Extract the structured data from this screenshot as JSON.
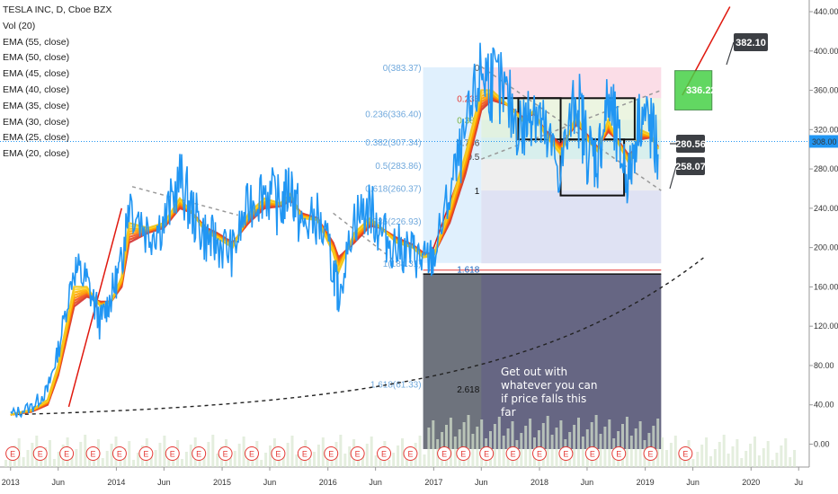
{
  "legend": {
    "title": "TESLA INC, D, Cboe BZX",
    "items": [
      "Vol (20)",
      "EMA (55, close)",
      "EMA (50, close)",
      "EMA (45, close)",
      "EMA (40, close)",
      "EMA (35, close)",
      "EMA (30, close)",
      "EMA (25, close)",
      "EMA (20, close)"
    ]
  },
  "colors": {
    "price": "#2196f3",
    "ema_fast": "#f0c419",
    "ema_slow": "#e53935",
    "trend_red": "#e0190f",
    "fib_dashed": "#000000",
    "callout_bg": "#3c3f44",
    "green_box": "#47d147",
    "earnings": "#e53935"
  },
  "chart_data": {
    "type": "line",
    "title": "TESLA INC, D, Cboe BZX",
    "xlabel": "",
    "ylabel": "",
    "ylim": [
      -5,
      440
    ],
    "y_ticks": [
      "0.00",
      "40.00",
      "80.00",
      "120.00",
      "160.00",
      "200.00",
      "240.00",
      "280.00",
      "320.00",
      "360.00",
      "400.00",
      "440.00"
    ],
    "x_ticks": [
      "2013",
      "Jun",
      "2014",
      "Jun",
      "2015",
      "Jun",
      "2016",
      "Jun",
      "2017",
      "Jun",
      "2018",
      "Jun",
      "2019",
      "Jun",
      "2020",
      "Ju"
    ],
    "current_price_label": "308.00",
    "series": [
      {
        "name": "TESLA INC",
        "x": [
          2013.0,
          2013.2,
          2013.35,
          2013.45,
          2013.6,
          2013.72,
          2013.85,
          2013.95,
          2014.05,
          2014.12,
          2014.3,
          2014.45,
          2014.6,
          2014.72,
          2014.85,
          2014.95,
          2015.1,
          2015.25,
          2015.4,
          2015.55,
          2015.65,
          2015.75,
          2015.9,
          2016.05,
          2016.1,
          2016.25,
          2016.4,
          2016.5,
          2016.65,
          2016.8,
          2016.9,
          2017.0,
          2017.15,
          2017.3,
          2017.45,
          2017.55,
          2017.7,
          2017.85,
          2017.95,
          2018.05,
          2018.2,
          2018.35,
          2018.45,
          2018.55,
          2018.65,
          2018.75,
          2018.85,
          2018.95,
          2019.05,
          2019.12
        ],
        "values": [
          30,
          38,
          55,
          95,
          180,
          165,
          125,
          150,
          185,
          250,
          215,
          225,
          270,
          235,
          210,
          205,
          195,
          245,
          260,
          240,
          265,
          220,
          230,
          180,
          150,
          230,
          240,
          215,
          200,
          195,
          185,
          190,
          255,
          310,
          380,
          370,
          345,
          320,
          350,
          310,
          280,
          355,
          300,
          290,
          350,
          300,
          270,
          340,
          320,
          295
        ]
      },
      {
        "name": "EMA (20, close)",
        "values": [
          30,
          35,
          45,
          80,
          160,
          160,
          140,
          145,
          170,
          225,
          220,
          225,
          250,
          235,
          215,
          210,
          200,
          235,
          250,
          245,
          255,
          230,
          228,
          195,
          175,
          215,
          230,
          220,
          205,
          200,
          190,
          192,
          240,
          295,
          360,
          360,
          345,
          328,
          340,
          315,
          295,
          335,
          310,
          298,
          330,
          305,
          285,
          320,
          315,
          300
        ]
      },
      {
        "name": "EMA (55, close)",
        "values": [
          30,
          33,
          40,
          70,
          140,
          150,
          145,
          145,
          160,
          205,
          215,
          220,
          240,
          235,
          220,
          215,
          205,
          225,
          240,
          242,
          248,
          235,
          230,
          205,
          190,
          205,
          222,
          220,
          210,
          203,
          195,
          193,
          225,
          275,
          340,
          350,
          345,
          332,
          336,
          320,
          305,
          325,
          315,
          302,
          318,
          308,
          293,
          310,
          312,
          303
        ]
      }
    ],
    "fib_levels_left": [
      {
        "ratio": "0",
        "label": "0(383.37)"
      },
      {
        "ratio": "0.236",
        "label": "0.236(336.40)"
      },
      {
        "ratio": "0.382",
        "label": "0.382(307.34)"
      },
      {
        "ratio": "0.5",
        "label": "0.5(283.86)"
      },
      {
        "ratio": "0.618",
        "label": "0.618(260.37)"
      },
      {
        "ratio": "0.786",
        "label": "0.786(226.93)"
      },
      {
        "ratio": "1",
        "label": "1(184.31)"
      },
      {
        "ratio": "1.618",
        "label": "1.618"
      },
      {
        "ratio": "1.618",
        "label": "1.618(61.33)"
      },
      {
        "ratio": "2.618",
        "label": "2.618"
      }
    ],
    "fib_levels_right": [
      {
        "label": "0"
      },
      {
        "label": "0.236"
      },
      {
        "label": "0.382"
      },
      {
        "label": "0.5"
      },
      {
        "label": "0.786"
      },
      {
        "label": "1"
      }
    ],
    "annotations": {
      "note": "Get out with whatever you can if price falls this far",
      "callouts": [
        "382.10",
        "336.22",
        "280.56",
        "258.07"
      ]
    }
  }
}
